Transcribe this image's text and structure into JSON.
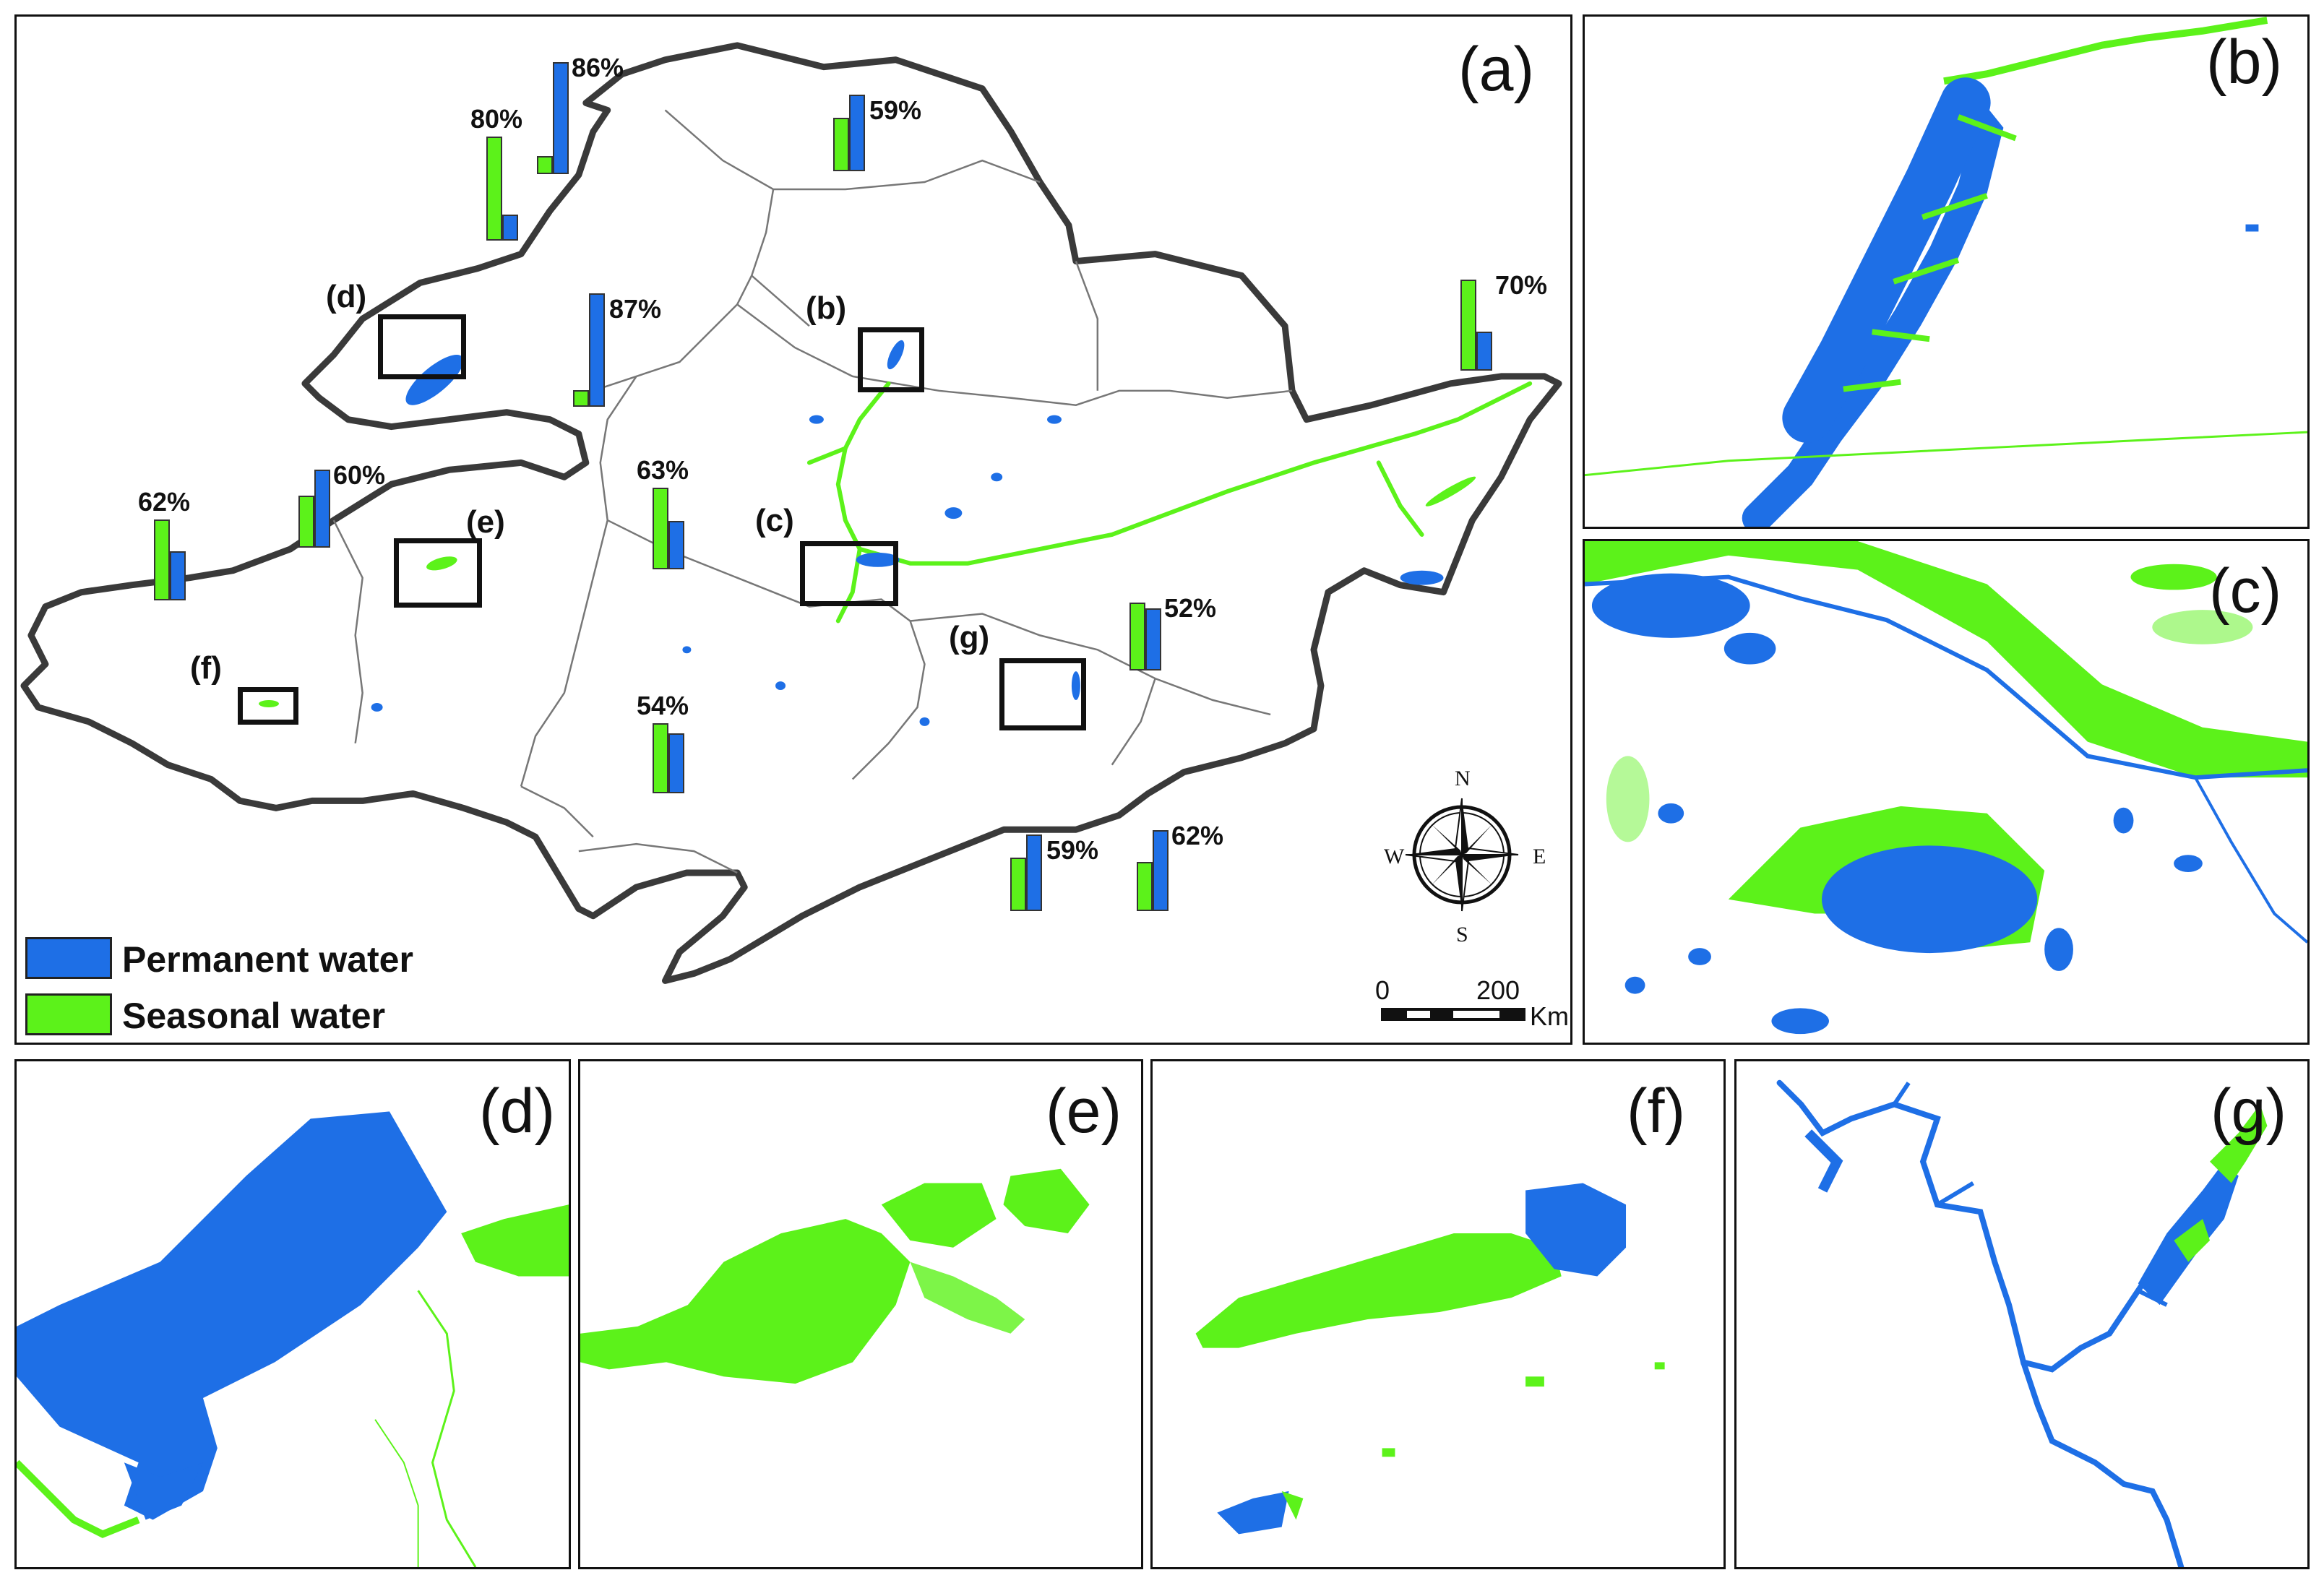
{
  "colors": {
    "permanent": "#1e6fe6",
    "seasonal": "#5cf21a",
    "boundary": "#3a3a3a",
    "subbasin": "#777777"
  },
  "panels": {
    "a": "(a)",
    "b": "(b)",
    "c": "(c)",
    "d": "(d)",
    "e": "(e)",
    "f": "(f)",
    "g": "(g)"
  },
  "insets": {
    "b": "(b)",
    "c": "(c)",
    "d": "(d)",
    "e": "(e)",
    "f": "(f)",
    "g": "(g)"
  },
  "subbasin_bars": [
    {
      "label": "86%",
      "seasonal_fraction": 0.14,
      "permanent_fraction": 0.86
    },
    {
      "label": "80%",
      "seasonal_fraction": 0.8,
      "permanent_fraction": 0.2
    },
    {
      "label": "59%",
      "seasonal_fraction": 0.41,
      "permanent_fraction": 0.59
    },
    {
      "label": "70%",
      "seasonal_fraction": 0.7,
      "permanent_fraction": 0.3
    },
    {
      "label": "87%",
      "seasonal_fraction": 0.13,
      "permanent_fraction": 0.87
    },
    {
      "label": "60%",
      "seasonal_fraction": 0.4,
      "permanent_fraction": 0.6
    },
    {
      "label": "62%",
      "seasonal_fraction": 0.62,
      "permanent_fraction": 0.38
    },
    {
      "label": "63%",
      "seasonal_fraction": 0.63,
      "permanent_fraction": 0.37
    },
    {
      "label": "52%",
      "seasonal_fraction": 0.52,
      "permanent_fraction": 0.48
    },
    {
      "label": "54%",
      "seasonal_fraction": 0.54,
      "permanent_fraction": 0.46
    },
    {
      "label": "59%",
      "seasonal_fraction": 0.41,
      "permanent_fraction": 0.59
    },
    {
      "label": "62%",
      "seasonal_fraction": 0.38,
      "permanent_fraction": 0.62
    }
  ],
  "legend": {
    "permanent": "Permanent water",
    "seasonal": "Seasonal water"
  },
  "compass": {
    "n": "N",
    "s": "S",
    "e": "E",
    "w": "W"
  },
  "scale": {
    "zero": "0",
    "max": "200",
    "unit": "Km"
  }
}
